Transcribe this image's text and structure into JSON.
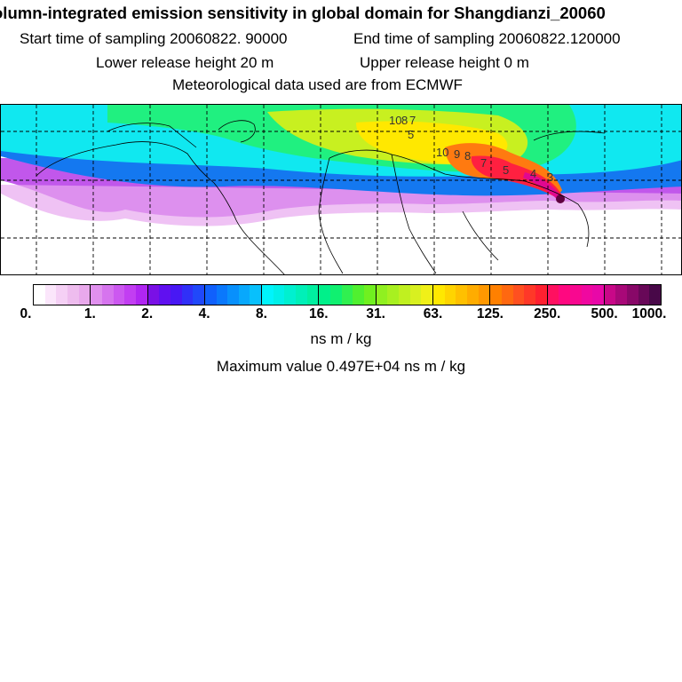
{
  "header": {
    "title": "olumn-integrated emission sensitivity in global domain for Shangdianzi_20060",
    "start_label": "Start time of sampling 20060822. 90000",
    "end_label": "End time of sampling 20060822.120000",
    "lower_label": "Lower release height   20 m",
    "upper_label": "Upper release height    0 m",
    "met_label": "Meteorological data used are from ECMWF"
  },
  "map": {
    "contour_labels": [
      "10",
      "8",
      "7",
      "5",
      "10",
      "9",
      "8",
      "7",
      "5",
      "4",
      "3"
    ]
  },
  "colorbar": {
    "ticks": [
      "0.",
      "1.",
      "2.",
      "4.",
      "8.",
      "16.",
      "31.",
      "63.",
      "125.",
      "250.",
      "500.",
      "1000."
    ],
    "unit": "ns m / kg",
    "colors": [
      "#ffffff",
      "#fbe6fb",
      "#f5d0f5",
      "#eebcee",
      "#e9a9ec",
      "#e090ee",
      "#d674ee",
      "#cc58f0",
      "#c23ef2",
      "#b026f2",
      "#7a10e6",
      "#6010f0",
      "#4818f4",
      "#3030f8",
      "#2048fa",
      "#1060fc",
      "#0a78fc",
      "#0890fc",
      "#08a8fc",
      "#08c0fc",
      "#00f4fc",
      "#00f0e8",
      "#00f0d0",
      "#00f0b8",
      "#00f0a0",
      "#00f08a",
      "#10f070",
      "#30f050",
      "#50f030",
      "#70f020",
      "#90f020",
      "#a8f020",
      "#c0f020",
      "#d8f020",
      "#f0f018",
      "#ffe800",
      "#ffd400",
      "#ffc000",
      "#ffac00",
      "#ff9800",
      "#ff8000",
      "#ff6810",
      "#ff5020",
      "#ff3828",
      "#ff2030",
      "#ff1060",
      "#ff0880",
      "#f80890",
      "#f008a0",
      "#e808a8",
      "#c80888",
      "#a80878",
      "#880868",
      "#680858",
      "#480848"
    ]
  },
  "footer": {
    "max_label": "Maximum value  0.497E+04 ns m / kg"
  }
}
